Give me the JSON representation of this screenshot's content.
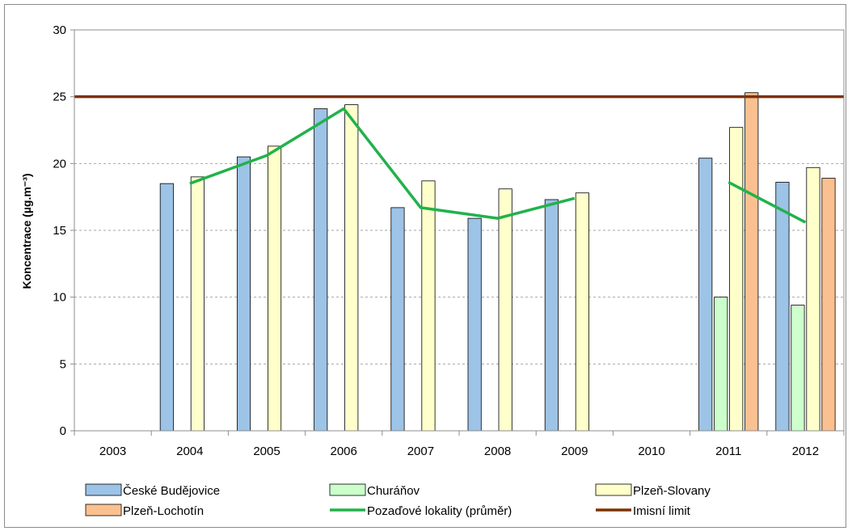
{
  "chart_data": {
    "type": "bar",
    "title": "",
    "ylabel": "Koncentrace (µg.m⁻³)",
    "xlabel": "",
    "ylim": [
      0,
      30
    ],
    "yticks": [
      0,
      5,
      10,
      15,
      20,
      25,
      30
    ],
    "grid": "horizontal dashed",
    "legend_position": "bottom",
    "categories": [
      "2003",
      "2004",
      "2005",
      "2006",
      "2007",
      "2008",
      "2009",
      "2010",
      "2011",
      "2012"
    ],
    "series": [
      {
        "name": "České Budějovice",
        "kind": "bar",
        "color": "#9dc3e6",
        "values": [
          null,
          18.5,
          20.5,
          24.1,
          16.7,
          15.9,
          17.3,
          null,
          20.4,
          18.6
        ]
      },
      {
        "name": "Churáňov",
        "kind": "bar",
        "color": "#ccffcc",
        "values": [
          null,
          null,
          null,
          null,
          null,
          null,
          null,
          null,
          10.0,
          9.4
        ]
      },
      {
        "name": "Plzeň-Slovany",
        "kind": "bar",
        "color": "#ffffcc",
        "values": [
          null,
          19.0,
          21.3,
          24.4,
          18.7,
          18.1,
          17.8,
          null,
          22.7,
          19.7
        ]
      },
      {
        "name": "Plzeň-Lochotín",
        "kind": "bar",
        "color": "#fac090",
        "values": [
          null,
          null,
          null,
          null,
          null,
          null,
          null,
          null,
          25.3,
          18.9
        ]
      },
      {
        "name": "Pozaďové lokality (průměr)",
        "kind": "line",
        "color": "#21b24b",
        "values": [
          null,
          18.5,
          20.6,
          24.1,
          16.7,
          15.9,
          17.4,
          null,
          18.6,
          15.6
        ]
      },
      {
        "name": "Imisní limit",
        "kind": "hline",
        "color": "#7b3300",
        "value": 25
      }
    ]
  }
}
